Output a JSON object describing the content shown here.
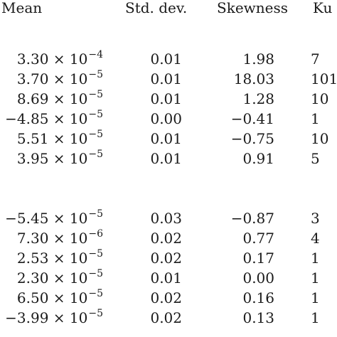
{
  "table": {
    "headers": {
      "mean": "Mean",
      "std": "Std. dev.",
      "skew": "Skewness",
      "kurt": "Ku"
    },
    "group1": [
      {
        "mean_base": "3.30 × 10",
        "mean_exp": "−4",
        "std": "0.01",
        "skew": "1.98",
        "kurt": "7"
      },
      {
        "mean_base": "3.70 × 10",
        "mean_exp": "−5",
        "std": "0.01",
        "skew": "18.03",
        "kurt": "101"
      },
      {
        "mean_base": "8.69 × 10",
        "mean_exp": "−5",
        "std": "0.01",
        "skew": "1.28",
        "kurt": "10"
      },
      {
        "mean_base": "−4.85 × 10",
        "mean_exp": "−5",
        "std": "0.00",
        "skew": "−0.41",
        "kurt": "1"
      },
      {
        "mean_base": "5.51 × 10",
        "mean_exp": "−5",
        "std": "0.01",
        "skew": "−0.75",
        "kurt": "10"
      },
      {
        "mean_base": "3.95 × 10",
        "mean_exp": "−5",
        "std": "0.01",
        "skew": "0.91",
        "kurt": "5"
      }
    ],
    "group2": [
      {
        "mean_base": "−5.45 × 10",
        "mean_exp": "−5",
        "std": "0.03",
        "skew": "−0.87",
        "kurt": "3"
      },
      {
        "mean_base": "7.30 × 10",
        "mean_exp": "−6",
        "std": "0.02",
        "skew": "0.77",
        "kurt": "4"
      },
      {
        "mean_base": "2.53 × 10",
        "mean_exp": "−5",
        "std": "0.02",
        "skew": "0.17",
        "kurt": "1"
      },
      {
        "mean_base": "2.30 × 10",
        "mean_exp": "−5",
        "std": "0.01",
        "skew": "0.00",
        "kurt": "1"
      },
      {
        "mean_base": "6.50 × 10",
        "mean_exp": "−5",
        "std": "0.02",
        "skew": "0.16",
        "kurt": "1"
      },
      {
        "mean_base": "−3.99 × 10",
        "mean_exp": "−5",
        "std": "0.02",
        "skew": "0.13",
        "kurt": "1"
      }
    ]
  }
}
